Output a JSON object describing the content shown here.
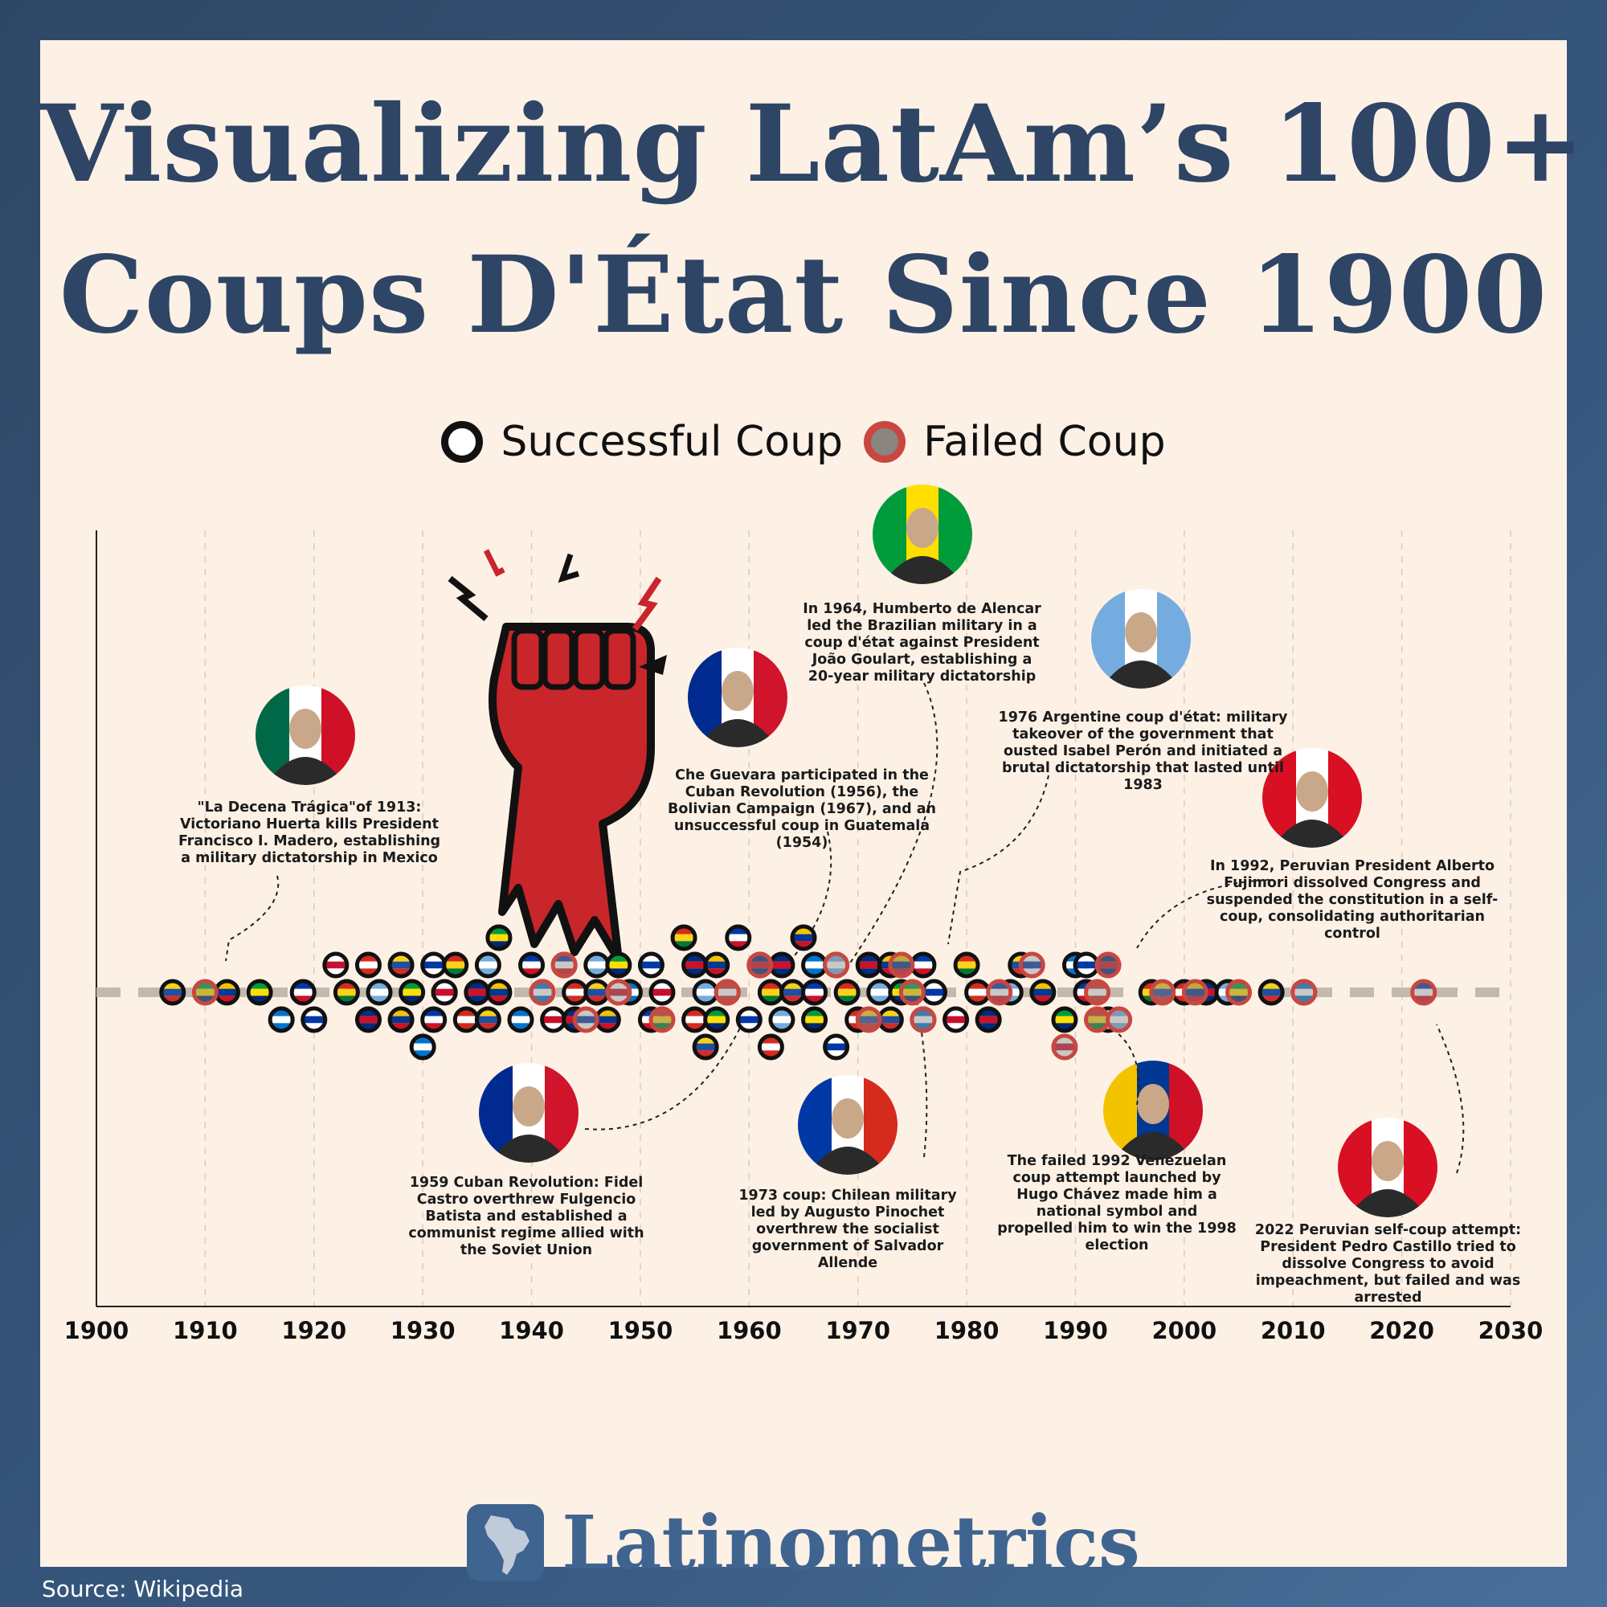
{
  "title": {
    "line1": "Visualizing LatAm’s 100+",
    "line2": "Coups D'État Since 1900"
  },
  "legend": {
    "successful": "Successful Coup",
    "failed": "Failed Coup"
  },
  "colors": {
    "successful_ring": "#111111",
    "failed_ring": "#c9473f",
    "title": "#2e4565",
    "background": "#fdf1e6"
  },
  "chart_data": {
    "type": "scatter",
    "subtype": "beeswarm timeline",
    "xlim": [
      1900,
      2030
    ],
    "x_ticks": [
      1900,
      1910,
      1920,
      1930,
      1940,
      1950,
      1960,
      1970,
      1980,
      1990,
      2000,
      2010,
      2020,
      2030
    ],
    "grid": "vertical dashed",
    "series": [
      {
        "name": "Successful Coup",
        "x": [
          1907,
          1912,
          1915,
          1917,
          1919,
          1920,
          1922,
          1923,
          1925,
          1925,
          1926,
          1928,
          1928,
          1929,
          1930,
          1931,
          1931,
          1932,
          1933,
          1934,
          1935,
          1936,
          1936,
          1937,
          1937,
          1939,
          1940,
          1941,
          1942,
          1943,
          1944,
          1944,
          1946,
          1946,
          1947,
          1948,
          1949,
          1951,
          1951,
          1952,
          1954,
          1955,
          1955,
          1956,
          1956,
          1957,
          1957,
          1958,
          1959,
          1960,
          1961,
          1962,
          1962,
          1963,
          1963,
          1964,
          1965,
          1966,
          1966,
          1966,
          1968,
          1968,
          1969,
          1970,
          1971,
          1972,
          1973,
          1973,
          1974,
          1976,
          1976,
          1977,
          1979,
          1980,
          1981,
          1982,
          1984,
          1985,
          1987,
          1989,
          1990,
          1991,
          1991,
          1993,
          1997,
          2000,
          2002,
          2004,
          2008,
          2011
        ],
        "y_order": [
          0,
          0,
          0,
          -1,
          0,
          -1,
          1,
          0,
          1,
          -1,
          0,
          1,
          -1,
          0,
          -2,
          -1,
          1,
          0,
          1,
          -1,
          0,
          1,
          -1,
          0,
          2,
          -1,
          1,
          0,
          -1,
          1,
          0,
          -1,
          1,
          0,
          -1,
          1,
          0,
          -1,
          1,
          0,
          2,
          -1,
          1,
          0,
          -2,
          1,
          -1,
          0,
          2,
          -1,
          1,
          0,
          -2,
          1,
          -1,
          0,
          2,
          -1,
          1,
          0,
          -2,
          1,
          0,
          -1,
          1,
          0,
          -1,
          1,
          0,
          -1,
          1,
          0,
          -1,
          1,
          0,
          -1,
          0,
          1,
          0,
          -1,
          1,
          0,
          1,
          -1,
          0,
          0,
          0,
          0,
          0,
          0
        ]
      },
      {
        "name": "Failed Coup",
        "x": [
          1910,
          1941,
          1943,
          1945,
          1948,
          1952,
          1958,
          1961,
          1968,
          1971,
          1974,
          1975,
          1976,
          1983,
          1986,
          1989,
          1992,
          1992,
          1993,
          1994,
          1998,
          2001,
          2005,
          2011,
          2022
        ],
        "y_order": [
          0,
          0,
          1,
          -1,
          0,
          -1,
          0,
          1,
          1,
          -1,
          1,
          0,
          -1,
          0,
          1,
          -2,
          -1,
          0,
          1,
          -1,
          0,
          0,
          0,
          0,
          0
        ]
      }
    ],
    "annotations": [
      {
        "year": 1913,
        "text": "\"La Decena Trágica\"of 1913: Victoriano Huerta kills President Francisco I. Madero, establishing a military dictatorship in Mexico"
      },
      {
        "year": 1959,
        "text": "1959 Cuban Revolution: Fidel Castro overthrew Fulgencio Batista and established a communist regime allied with the Soviet Union"
      },
      {
        "year": 1956,
        "text": "Che Guevara participated in the Cuban Revolution (1956), the Bolivian Campaign (1967), and an unsuccessful coup in Guatemala (1954)"
      },
      {
        "year": 1964,
        "text": "In 1964, Humberto de Alencar led the Brazilian military in a coup d'état against President João Goulart, establishing a 20-year military dictatorship"
      },
      {
        "year": 1973,
        "text": "1973 coup: Chilean military led by Augusto Pinochet overthrew the socialist government of Salvador Allende"
      },
      {
        "year": 1976,
        "text": "1976 Argentine coup d'état: military takeover of the government that ousted Isabel Perón and initiated a brutal dictatorship that lasted until 1983"
      },
      {
        "year": 1992,
        "text": "The failed 1992 Venezuelan coup attempt launched by Hugo Chávez made him a national symbol and propelled him to win the 1998 election"
      },
      {
        "year": 1992,
        "text": "In 1992, Peruvian President Alberto Fujimori dissolved Congress and suspended the constitution in a self-coup, consolidating authoritarian control"
      },
      {
        "year": 2022,
        "text": "2022 Peruvian self-coup attempt: President Pedro Castillo tried to dissolve Congress to avoid impeachment, but failed and was arrested"
      }
    ]
  },
  "brand": "Latinometrics",
  "source": "Source: Wikipedia"
}
